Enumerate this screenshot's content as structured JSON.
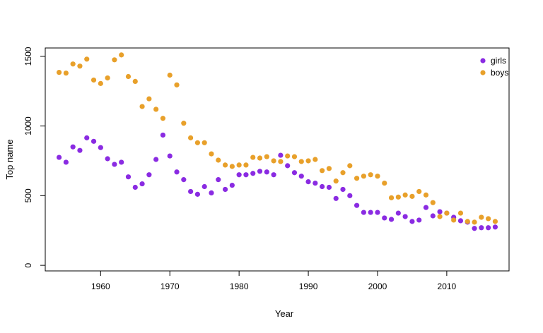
{
  "chart_data": {
    "type": "scatter",
    "xlabel": "Year",
    "ylabel": "Top name",
    "xlim": [
      1952,
      2019
    ],
    "ylim": [
      -40,
      1560
    ],
    "xticks": [
      1960,
      1970,
      1980,
      1990,
      2000,
      2010
    ],
    "yticks": [
      0,
      500,
      1000,
      1500
    ],
    "grid": false,
    "legend_position": "top-right",
    "series": [
      {
        "name": "girls",
        "color": "#8A2BE2",
        "x": [
          1954,
          1955,
          1956,
          1957,
          1958,
          1959,
          1960,
          1961,
          1962,
          1963,
          1964,
          1965,
          1966,
          1967,
          1968,
          1969,
          1970,
          1971,
          1972,
          1973,
          1974,
          1975,
          1976,
          1977,
          1978,
          1979,
          1980,
          1981,
          1982,
          1983,
          1984,
          1985,
          1986,
          1987,
          1988,
          1989,
          1990,
          1991,
          1992,
          1993,
          1994,
          1995,
          1996,
          1997,
          1998,
          1999,
          2000,
          2001,
          2002,
          2003,
          2004,
          2005,
          2006,
          2007,
          2008,
          2009,
          2010,
          2011,
          2012,
          2013,
          2014,
          2015,
          2016,
          2017
        ],
        "y": [
          775,
          740,
          850,
          825,
          915,
          890,
          845,
          765,
          725,
          740,
          635,
          560,
          585,
          650,
          760,
          935,
          785,
          670,
          615,
          530,
          510,
          565,
          520,
          615,
          545,
          575,
          650,
          650,
          660,
          675,
          670,
          650,
          790,
          715,
          665,
          640,
          600,
          590,
          565,
          560,
          480,
          545,
          500,
          430,
          380,
          380,
          380,
          340,
          330,
          375,
          350,
          315,
          325,
          415,
          355,
          385,
          375,
          345,
          320,
          310,
          265,
          270,
          270,
          275
        ]
      },
      {
        "name": "boys",
        "color": "#E8A02A",
        "x": [
          1954,
          1955,
          1956,
          1957,
          1958,
          1959,
          1960,
          1961,
          1962,
          1963,
          1964,
          1965,
          1966,
          1967,
          1968,
          1969,
          1970,
          1971,
          1972,
          1973,
          1974,
          1975,
          1976,
          1977,
          1978,
          1979,
          1980,
          1981,
          1982,
          1983,
          1984,
          1985,
          1986,
          1987,
          1988,
          1989,
          1990,
          1991,
          1992,
          1993,
          1994,
          1995,
          1996,
          1997,
          1998,
          1999,
          2000,
          2001,
          2002,
          2003,
          2004,
          2005,
          2006,
          2007,
          2008,
          2009,
          2010,
          2011,
          2012,
          2013,
          2014,
          2015,
          2016,
          2017
        ],
        "y": [
          1385,
          1380,
          1445,
          1430,
          1480,
          1330,
          1305,
          1345,
          1475,
          1510,
          1355,
          1320,
          1140,
          1195,
          1120,
          1055,
          1365,
          1295,
          1020,
          915,
          880,
          880,
          800,
          755,
          720,
          710,
          720,
          720,
          775,
          770,
          780,
          750,
          745,
          785,
          780,
          745,
          750,
          760,
          680,
          695,
          605,
          665,
          715,
          625,
          640,
          650,
          640,
          590,
          485,
          490,
          505,
          495,
          530,
          505,
          450,
          350,
          375,
          325,
          375,
          315,
          310,
          345,
          335,
          315
        ]
      }
    ]
  }
}
